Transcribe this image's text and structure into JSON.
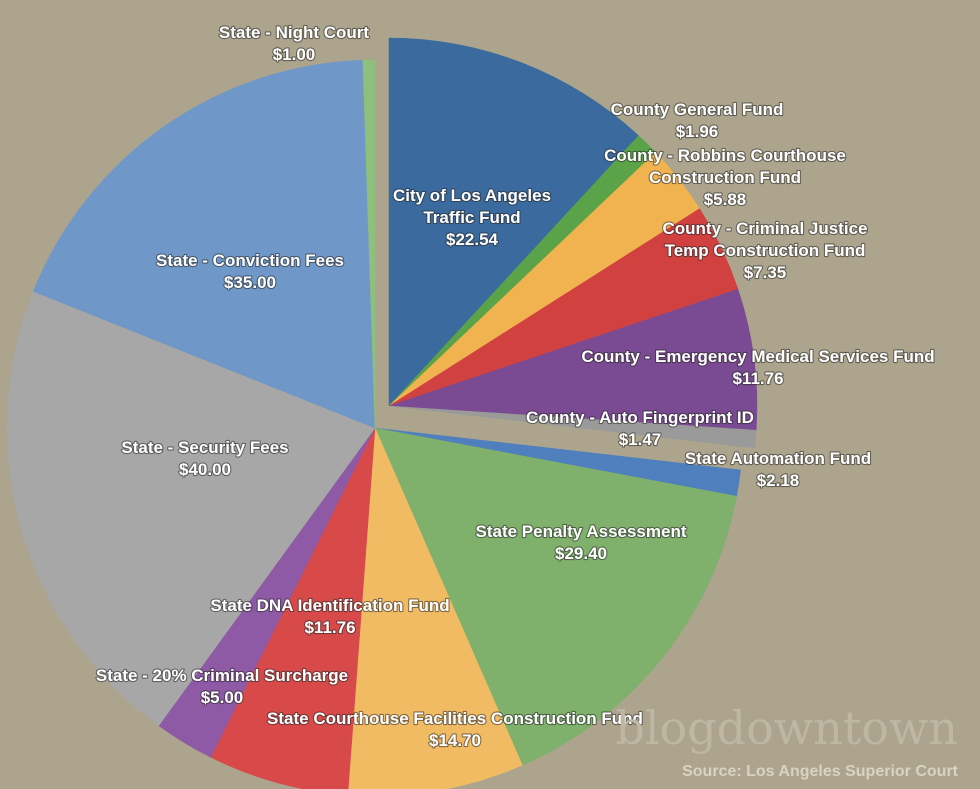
{
  "chart_data": {
    "type": "pie",
    "title": "",
    "unit": "$",
    "slices": [
      {
        "label": "City of Los Angeles Traffic Fund",
        "lines": [
          "City of Los Angeles",
          "Traffic Fund",
          "$22.54"
        ],
        "value": 22.54,
        "color": "#3a6a9e",
        "exploded": true
      },
      {
        "label": "County General Fund",
        "lines": [
          "County General Fund",
          "$1.96"
        ],
        "value": 1.96,
        "color": "#5aa348",
        "exploded": true
      },
      {
        "label": "County - Robbins Courthouse Construction Fund",
        "lines": [
          "County - Robbins Courthouse",
          "Construction Fund",
          "$5.88"
        ],
        "value": 5.88,
        "color": "#f0b34f",
        "exploded": true
      },
      {
        "label": "County - Criminal Justice Temp Construction Fund",
        "lines": [
          "County - Criminal Justice",
          "Temp Construction Fund",
          "$7.35"
        ],
        "value": 7.35,
        "color": "#d04140",
        "exploded": true
      },
      {
        "label": "County - Emergency Medical Services Fund",
        "lines": [
          "County - Emergency Medical Services Fund",
          "$11.76"
        ],
        "value": 11.76,
        "color": "#7a4a93",
        "exploded": true
      },
      {
        "label": "County - Auto Fingerprint ID",
        "lines": [
          "County - Auto Fingerprint ID",
          "$1.47"
        ],
        "value": 1.47,
        "color": "#9a9a9a",
        "exploded": true
      },
      {
        "label": "State Automation Fund",
        "lines": [
          "State Automation Fund",
          "$2.18"
        ],
        "value": 2.18,
        "color": "#4f7fbc",
        "exploded": false
      },
      {
        "label": "State Penalty Assessment",
        "lines": [
          "State Penalty Assessment",
          "$29.40"
        ],
        "value": 29.4,
        "color": "#7fb06c",
        "exploded": false
      },
      {
        "label": "State Courthouse Facilities Construction Fund",
        "lines": [
          "State Courthouse Facilities Construction Fund",
          "$14.70"
        ],
        "value": 14.7,
        "color": "#f1bb63",
        "exploded": false
      },
      {
        "label": "State DNA Identification Fund",
        "lines": [
          "State DNA Identification Fund",
          "$11.76"
        ],
        "value": 11.76,
        "color": "#d84a4a",
        "exploded": false
      },
      {
        "label": "State - 20% Criminal Surcharge",
        "lines": [
          "State - 20% Criminal Surcharge",
          "$5.00"
        ],
        "value": 5.0,
        "color": "#8e5aa5",
        "exploded": false
      },
      {
        "label": "State - Security Fees",
        "lines": [
          "State - Security Fees",
          "$40.00"
        ],
        "value": 40.0,
        "color": "#a7a7a7",
        "exploded": false
      },
      {
        "label": "State - Conviction Fees",
        "lines": [
          "State - Conviction Fees",
          "$35.00"
        ],
        "value": 35.0,
        "color": "#6f98c8",
        "exploded": false
      },
      {
        "label": "State - Night Court",
        "lines": [
          "State - Night Court",
          "$1.00"
        ],
        "value": 1.0,
        "color": "#8fbf7c",
        "exploded": false
      }
    ]
  },
  "watermark": "blogdowntown",
  "source": "Source: Los Angeles Superior Court"
}
